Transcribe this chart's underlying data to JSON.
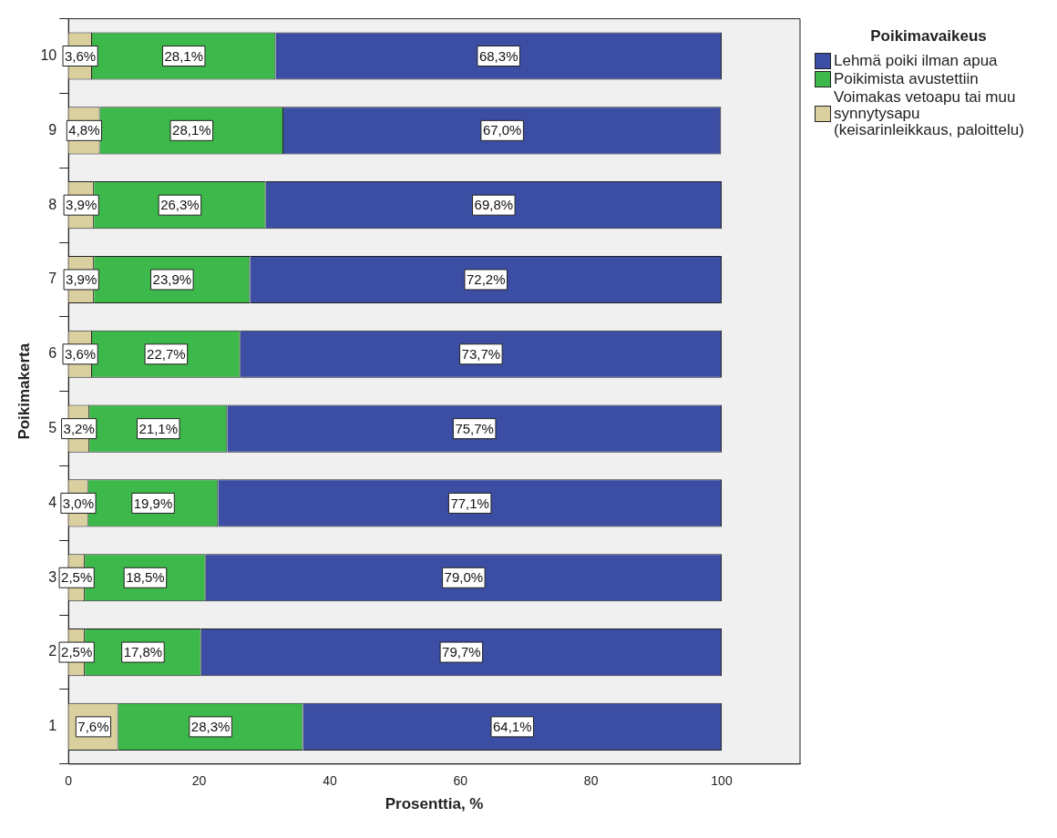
{
  "chart_data": {
    "type": "bar",
    "orientation": "horizontal",
    "stacked": true,
    "xlabel": "Prosenttia, %",
    "ylabel": "Poikimakerta",
    "legend_title": "Poikimavaikeus",
    "legend": "top right",
    "categories": [
      "10",
      "9",
      "8",
      "7",
      "6",
      "5",
      "4",
      "3",
      "2",
      "1"
    ],
    "xlim": [
      0,
      112
    ],
    "xticks": [
      0,
      20,
      40,
      60,
      80,
      100
    ],
    "series": [
      {
        "name": "Voimakas vetoapu tai muu synnytysapu (keisarinleikkaus, paloittelu)",
        "color": "#d9cf9f",
        "values": [
          3.6,
          4.8,
          3.9,
          3.9,
          3.6,
          3.2,
          3.0,
          2.5,
          2.5,
          7.6
        ],
        "value_labels": [
          "3,6%",
          "4,8%",
          "3,9%",
          "3,9%",
          "3,6%",
          "3,2%",
          "3,0%",
          "2,5%",
          "2,5%",
          "7,6%"
        ]
      },
      {
        "name": "Poikimista avustettiin",
        "color": "#3cb94a",
        "values": [
          28.1,
          28.1,
          26.3,
          23.9,
          22.7,
          21.1,
          19.9,
          18.5,
          17.8,
          28.3
        ],
        "value_labels": [
          "28,1%",
          "28,1%",
          "26,3%",
          "23,9%",
          "22,7%",
          "21,1%",
          "19,9%",
          "18,5%",
          "17,8%",
          "28,3%"
        ]
      },
      {
        "name": "Lehmä poiki ilman apua",
        "color": "#3b4ea3",
        "values": [
          68.3,
          67.0,
          69.8,
          72.2,
          73.7,
          75.7,
          77.1,
          79.0,
          79.7,
          64.1
        ],
        "value_labels": [
          "68,3%",
          "67,0%",
          "69,8%",
          "72,2%",
          "73,7%",
          "75,7%",
          "77,1%",
          "79,0%",
          "79,7%",
          "64,1%"
        ]
      }
    ]
  }
}
